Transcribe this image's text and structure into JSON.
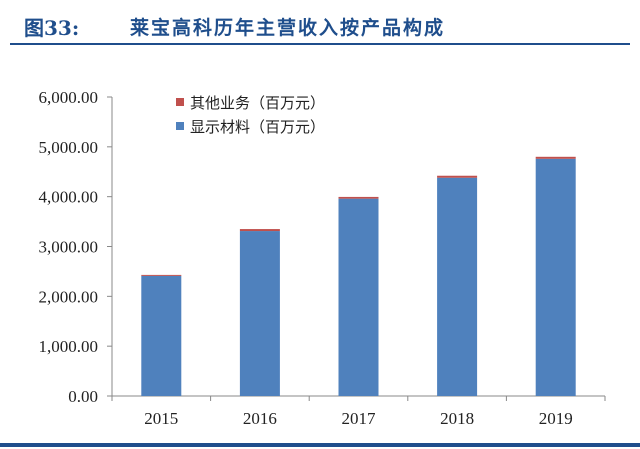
{
  "header": {
    "figure_number": "图33:",
    "title": "莱宝高科历年主营收入按产品构成"
  },
  "legend": {
    "items": [
      {
        "label": "其他业务（百万元）",
        "color": "#c0504d"
      },
      {
        "label": "显示材料（百万元）",
        "color": "#4f81bd"
      }
    ]
  },
  "axis": {
    "y_ticks": [
      "6,000.00",
      "5,000.00",
      "4,000.00",
      "3,000.00",
      "2,000.00",
      "1,000.00",
      "0.00"
    ],
    "x_ticks": [
      "2015",
      "2016",
      "2017",
      "2018",
      "2019"
    ]
  },
  "chart_data": {
    "type": "bar",
    "stacked": true,
    "title": "莱宝高科历年主营收入按产品构成",
    "categories": [
      "2015",
      "2016",
      "2017",
      "2018",
      "2019"
    ],
    "series": [
      {
        "name": "显示材料（百万元）",
        "color": "#4f81bd",
        "values": [
          2410,
          3310,
          3960,
          4380,
          4760
        ]
      },
      {
        "name": "其他业务（百万元）",
        "color": "#c0504d",
        "values": [
          20,
          40,
          35,
          40,
          40
        ]
      }
    ],
    "xlabel": "",
    "ylabel": "",
    "ylim": [
      0,
      6000
    ],
    "y_tick_step": 1000,
    "grid": false,
    "legend_position": "top-left inside"
  }
}
